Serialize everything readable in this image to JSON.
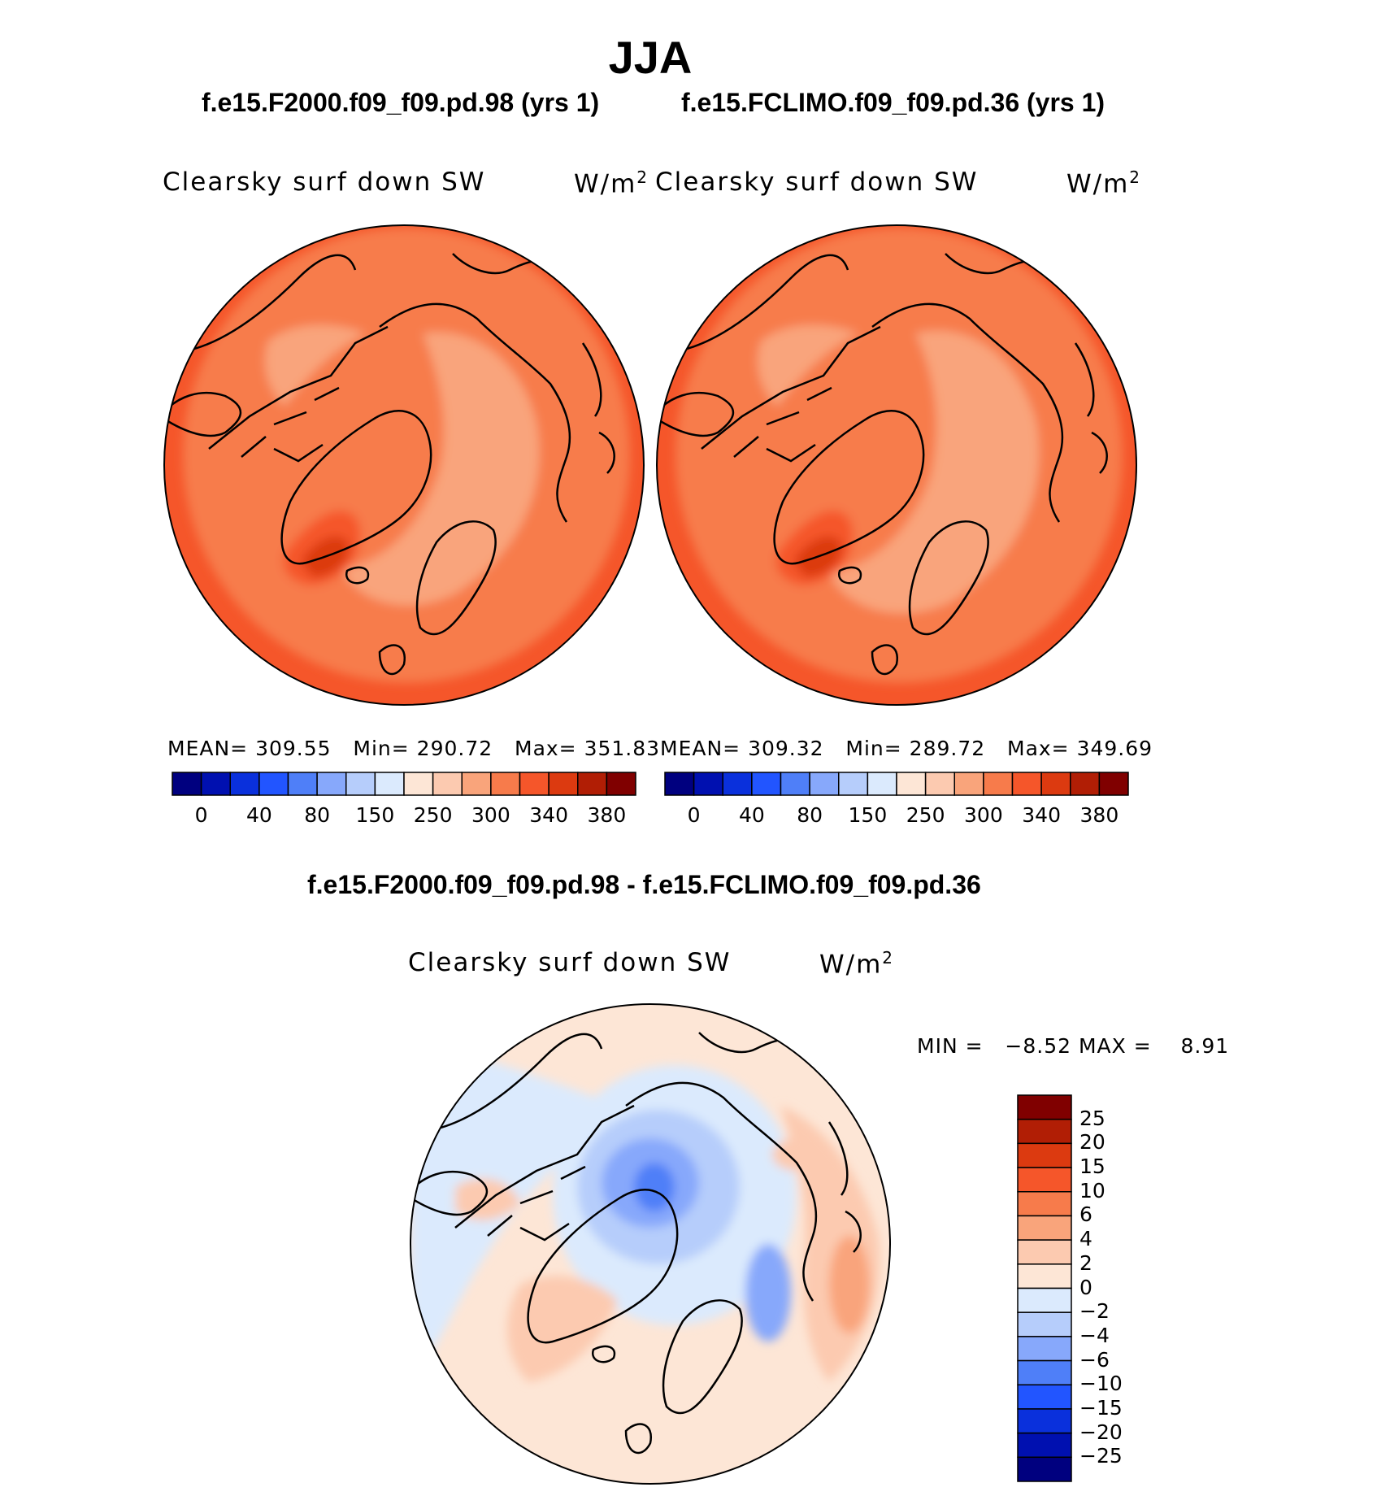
{
  "title": "JJA",
  "panels": [
    {
      "case": "f.e15.F2000.f09_f09.pd.98 (yrs 1)",
      "variable": "Clearsky surf down SW",
      "units_base": "W/m",
      "units_exp": "2",
      "stats": {
        "mean_label": "MEAN=",
        "mean": "309.55",
        "min_label": "Min=",
        "min": "290.72",
        "max_label": "Max=",
        "max": "351.83"
      }
    },
    {
      "case": "f.e15.FCLIMO.f09_f09.pd.36 (yrs 1)",
      "variable": "Clearsky surf down SW",
      "units_base": "W/m",
      "units_exp": "2",
      "stats": {
        "mean_label": "MEAN=",
        "mean": "309.32",
        "min_label": "Min=",
        "min": "289.72",
        "max_label": "Max=",
        "max": "349.69"
      }
    }
  ],
  "diff": {
    "title": "f.e15.F2000.f09_f09.pd.98 - f.e15.FCLIMO.f09_f09.pd.36",
    "variable": "Clearsky surf down SW",
    "units_base": "W/m",
    "units_exp": "2",
    "min_label": "MIN =",
    "min": "−8.52",
    "max_label": "MAX =",
    "max": "8.91"
  },
  "chart_data": [
    {
      "type": "heatmap",
      "projection": "north-polar-stereographic",
      "title": "f.e15.F2000.f09_f09.pd.98 (yrs 1)",
      "variable": "Clearsky surf down SW",
      "units": "W/m2",
      "mean": 309.55,
      "min": 290.72,
      "max": 351.83,
      "colorbar": {
        "ticks": [
          "0",
          "40",
          "80",
          "150",
          "250",
          "300",
          "340",
          "380"
        ],
        "colors": [
          "#00007f",
          "#0010b0",
          "#0a30dc",
          "#2255ff",
          "#4f7ff8",
          "#87a8fb",
          "#b6cdfb",
          "#dbeafd",
          "#fde6d6",
          "#fccab0",
          "#f9a47b",
          "#f77b4b",
          "#f5562a",
          "#dc3a10",
          "#b11e05",
          "#800000"
        ]
      },
      "dominant_range": [
        300,
        340
      ],
      "regions": {
        "central_arctic": "300-340",
        "eurasian_arctic_band": "250-300",
        "greenland_ice_sheet": "340-380",
        "outer_midlatitudes": "300-340"
      }
    },
    {
      "type": "heatmap",
      "projection": "north-polar-stereographic",
      "title": "f.e15.FCLIMO.f09_f09.pd.36 (yrs 1)",
      "variable": "Clearsky surf down SW",
      "units": "W/m2",
      "mean": 309.32,
      "min": 289.72,
      "max": 349.69,
      "colorbar": {
        "ticks": [
          "0",
          "40",
          "80",
          "150",
          "250",
          "300",
          "340",
          "380"
        ],
        "colors": [
          "#00007f",
          "#0010b0",
          "#0a30dc",
          "#2255ff",
          "#4f7ff8",
          "#87a8fb",
          "#b6cdfb",
          "#dbeafd",
          "#fde6d6",
          "#fccab0",
          "#f9a47b",
          "#f77b4b",
          "#f5562a",
          "#dc3a10",
          "#b11e05",
          "#800000"
        ]
      },
      "dominant_range": [
        300,
        340
      ],
      "regions": {
        "central_arctic": "300-340",
        "eurasian_arctic_band": "250-300",
        "greenland_ice_sheet": "340-380",
        "outer_midlatitudes": "300-340"
      }
    },
    {
      "type": "heatmap",
      "projection": "north-polar-stereographic",
      "title": "f.e15.F2000.f09_f09.pd.98 - f.e15.FCLIMO.f09_f09.pd.36",
      "variable": "Clearsky surf down SW",
      "units": "W/m2",
      "min": -8.52,
      "max": 8.91,
      "colorbar": {
        "orientation": "vertical",
        "ticks": [
          "25",
          "20",
          "15",
          "10",
          "6",
          "4",
          "2",
          "0",
          "−2",
          "−4",
          "−6",
          "−10",
          "−15",
          "−20",
          "−25"
        ],
        "colors_top_to_bottom": [
          "#800000",
          "#b11e05",
          "#dc3a10",
          "#f5562a",
          "#f77b4b",
          "#f9a47b",
          "#fccab0",
          "#fde6d6",
          "#dbeafd",
          "#b6cdfb",
          "#87a8fb",
          "#4f7ff8",
          "#2255ff",
          "#0a30dc",
          "#0010b0",
          "#00007f"
        ]
      },
      "regions": {
        "central_arctic_ocean": "-10 to -4",
        "eastern_siberia": "4 to 10",
        "canadian_arctic": "0 to 2",
        "europe_atlantic": "-2 to 2"
      }
    }
  ]
}
